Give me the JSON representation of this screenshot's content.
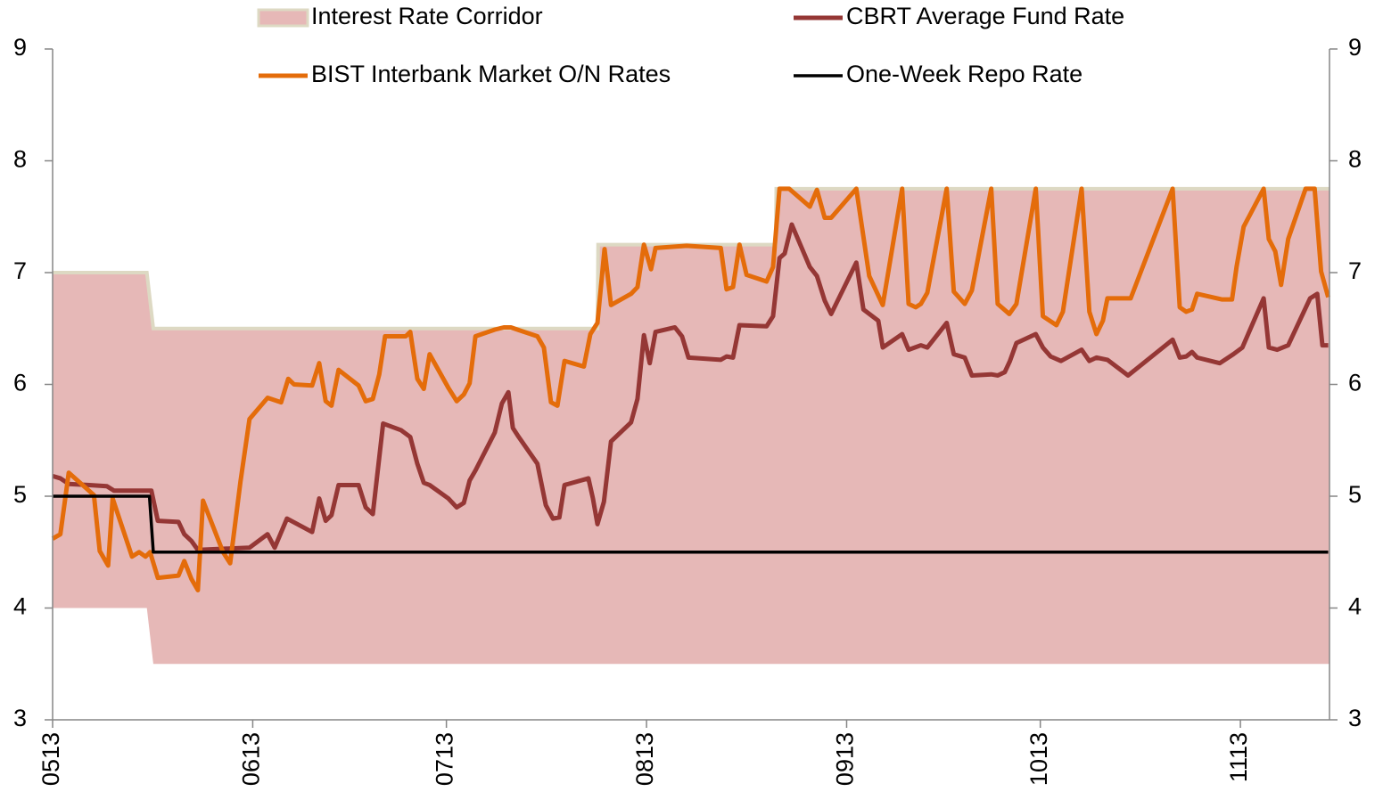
{
  "chart_data": {
    "type": "line",
    "legend": "top",
    "xlim": [
      0,
      197.8
    ],
    "xticks": [
      {
        "value": 0,
        "label": "0513"
      },
      {
        "value": 31,
        "label": "0613"
      },
      {
        "value": 61,
        "label": "0713"
      },
      {
        "value": 92,
        "label": "0813"
      },
      {
        "value": 123,
        "label": "0913"
      },
      {
        "value": 153,
        "label": "1013"
      },
      {
        "value": 184,
        "label": "1113"
      }
    ],
    "ylim": [
      3,
      9
    ],
    "yticks": [
      3,
      4,
      5,
      6,
      7,
      8,
      9
    ],
    "y2lim": [
      3,
      9
    ],
    "y2ticks": [
      3,
      4,
      5,
      6,
      7,
      8,
      9
    ],
    "series": [
      {
        "name": "Interest Rate Corridor",
        "type": "range",
        "color": "#e6b8b7",
        "edge_color": "#ddd9c3",
        "x": [
          0,
          14.6,
          15.6,
          84.4,
          84.5,
          112,
          112.1,
          197.8
        ],
        "upper": [
          7,
          7,
          6.5,
          6.5,
          7.25,
          7.25,
          7.75,
          7.75
        ],
        "lower": [
          4,
          4,
          3.5,
          3.5,
          3.5,
          3.5,
          3.5,
          3.5
        ]
      },
      {
        "name": "CBRT Average Fund Rate",
        "type": "line",
        "color": "#953735",
        "x": [
          0,
          1.2,
          2.5,
          5.7,
          8.4,
          9.5,
          14.0,
          15.3,
          16.3,
          19.5,
          20.4,
          21.5,
          22.5,
          26.4,
          30.5,
          33.3,
          34.4,
          36.3,
          40.2,
          41.3,
          42.3,
          43.2,
          44.3,
          47.4,
          48.5,
          49.6,
          51.2,
          54.0,
          55.4,
          56.5,
          57.5,
          58.4,
          61.3,
          62.6,
          63.7,
          64.6,
          65.5,
          68.5,
          69.6,
          70.6,
          71.3,
          72.2,
          75.1,
          76.4,
          77.5,
          78.5,
          79.3,
          83.0,
          83.7,
          84.4,
          85.4,
          86.5,
          89.6,
          90.6,
          91.6,
          92.5,
          93.4,
          96.4,
          97.5,
          98.5,
          103.5,
          104.4,
          105.4,
          106.4,
          110.6,
          111.6,
          112.6,
          113.4,
          114.5,
          117.3,
          118.4,
          119.6,
          120.6,
          124.5,
          125.6,
          127.9,
          128.6,
          131.6,
          132.6,
          134.5,
          135.5,
          138.5,
          139.6,
          141.3,
          142.4,
          145.4,
          146.4,
          147.5,
          148.3,
          149.3,
          152.3,
          153.4,
          154.6,
          156.2,
          159.4,
          160.6,
          161.7,
          163.4,
          166.6,
          173.5,
          174.6,
          175.6,
          176.5,
          177.3,
          180.8,
          182.9,
          184.3,
          187.6,
          188.4,
          189.7,
          191.4,
          194.8,
          195.9,
          196.7,
          197.6
        ],
        "values": [
          5.18,
          5.16,
          5.11,
          5.1,
          5.09,
          5.05,
          5.05,
          5.05,
          4.78,
          4.77,
          4.66,
          4.6,
          4.52,
          4.53,
          4.54,
          4.66,
          4.54,
          4.8,
          4.68,
          4.98,
          4.78,
          4.83,
          5.1,
          5.1,
          4.9,
          4.84,
          5.65,
          5.59,
          5.53,
          5.29,
          5.12,
          5.1,
          4.98,
          4.9,
          4.94,
          5.14,
          5.23,
          5.57,
          5.83,
          5.93,
          5.61,
          5.53,
          5.29,
          4.92,
          4.8,
          4.81,
          5.1,
          5.16,
          4.98,
          4.75,
          4.95,
          5.49,
          5.66,
          5.87,
          6.44,
          6.19,
          6.47,
          6.51,
          6.43,
          6.24,
          6.22,
          6.25,
          6.24,
          6.53,
          6.52,
          6.61,
          7.13,
          7.17,
          7.43,
          7.05,
          6.97,
          6.75,
          6.63,
          7.09,
          6.67,
          6.57,
          6.33,
          6.45,
          6.31,
          6.35,
          6.33,
          6.55,
          6.27,
          6.24,
          6.08,
          6.09,
          6.08,
          6.11,
          6.21,
          6.37,
          6.45,
          6.33,
          6.25,
          6.21,
          6.31,
          6.21,
          6.24,
          6.22,
          6.08,
          6.4,
          6.24,
          6.25,
          6.29,
          6.24,
          6.19,
          6.27,
          6.33,
          6.77,
          6.33,
          6.31,
          6.35,
          6.77,
          6.81,
          6.35,
          6.35
        ]
      },
      {
        "name": "BIST Interbank Market O/N Rates",
        "type": "line",
        "color": "#e46c0a",
        "x": [
          0,
          1.2,
          2.5,
          6.4,
          7.3,
          8.6,
          9.3,
          12.3,
          13.4,
          14.4,
          15.1,
          16.3,
          19.5,
          20.4,
          21.5,
          22.5,
          23.3,
          26.4,
          27.5,
          29.1,
          30.5,
          33.3,
          35.4,
          36.5,
          37.4,
          40.2,
          41.3,
          42.3,
          43.2,
          44.3,
          47.4,
          48.5,
          49.6,
          50.6,
          51.5,
          54.7,
          55.4,
          56.5,
          57.5,
          58.4,
          61.3,
          62.6,
          63.7,
          64.6,
          65.5,
          68.5,
          69.9,
          71.0,
          72.0,
          75.1,
          76.1,
          77.2,
          78.2,
          79.3,
          82.3,
          83.3,
          84.4,
          85.5,
          86.5,
          89.6,
          90.6,
          91.6,
          92.7,
          93.4,
          98.2,
          103.5,
          104.4,
          105.4,
          106.4,
          107.5,
          110.6,
          111.6,
          112.6,
          114.1,
          117.3,
          118.4,
          119.6,
          120.6,
          124.5,
          126.5,
          128.6,
          131.6,
          132.6,
          133.7,
          134.5,
          135.5,
          138.5,
          139.6,
          141.3,
          142.4,
          145.4,
          146.4,
          148.2,
          149.3,
          152.3,
          153.4,
          155.5,
          156.5,
          159.4,
          160.6,
          161.7,
          162.7,
          163.4,
          167.0,
          173.5,
          174.6,
          175.6,
          176.5,
          177.3,
          181.1,
          182.7,
          183.4,
          184.5,
          187.6,
          188.4,
          189.4,
          190.3,
          191.4,
          194.1,
          195.5,
          196.5,
          197.6
        ],
        "values": [
          4.62,
          4.66,
          5.21,
          5.01,
          4.51,
          4.38,
          4.98,
          4.46,
          4.5,
          4.46,
          4.5,
          4.27,
          4.29,
          4.42,
          4.26,
          4.16,
          4.96,
          4.5,
          4.4,
          5.13,
          5.69,
          5.88,
          5.84,
          6.05,
          6.0,
          5.99,
          6.19,
          5.85,
          5.81,
          6.13,
          5.99,
          5.85,
          5.87,
          6.09,
          6.43,
          6.43,
          6.47,
          6.05,
          5.96,
          6.27,
          5.97,
          5.85,
          5.91,
          6.01,
          6.43,
          6.49,
          6.51,
          6.51,
          6.49,
          6.43,
          6.33,
          5.84,
          5.81,
          6.21,
          6.16,
          6.45,
          6.55,
          7.21,
          6.71,
          6.81,
          6.87,
          7.25,
          7.03,
          7.22,
          7.24,
          7.22,
          6.85,
          6.87,
          7.25,
          6.98,
          6.92,
          7.05,
          7.75,
          7.75,
          7.59,
          7.74,
          7.49,
          7.49,
          7.75,
          6.97,
          6.71,
          7.75,
          6.72,
          6.69,
          6.72,
          6.82,
          7.75,
          6.83,
          6.72,
          6.84,
          7.75,
          6.72,
          6.63,
          6.72,
          7.75,
          6.61,
          6.53,
          6.65,
          7.75,
          6.65,
          6.45,
          6.57,
          6.77,
          6.77,
          7.75,
          6.69,
          6.65,
          6.67,
          6.81,
          6.76,
          6.76,
          7.05,
          7.41,
          7.75,
          7.3,
          7.19,
          6.89,
          7.3,
          7.75,
          7.75,
          7.01,
          6.78
        ]
      },
      {
        "name": "One-Week Repo Rate",
        "type": "line",
        "color": "#000000",
        "x": [
          0,
          15,
          15.6,
          197.6
        ],
        "values": [
          5,
          5,
          4.5,
          4.5
        ]
      }
    ]
  }
}
